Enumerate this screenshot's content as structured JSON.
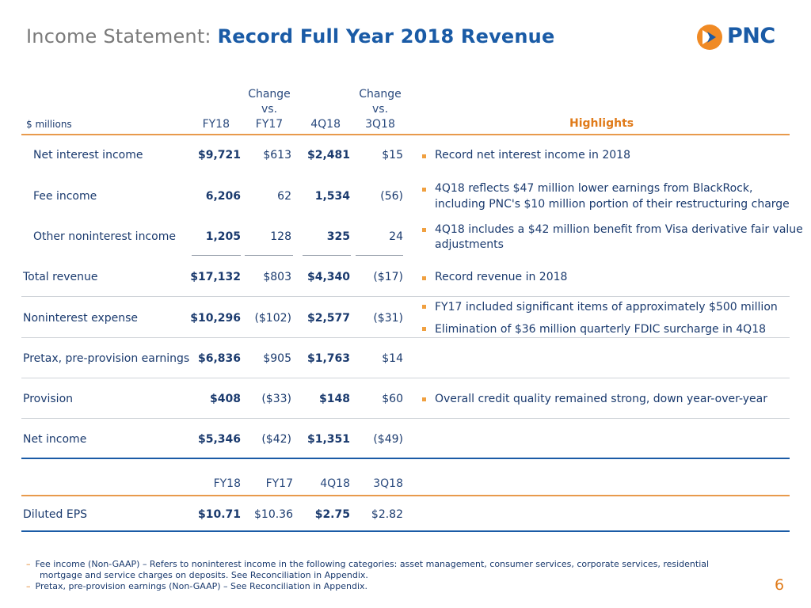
{
  "title": {
    "lead": "Income Statement:",
    "bold": "Record Full Year 2018 Revenue"
  },
  "logo": {
    "text": "PNC"
  },
  "header": {
    "units": "$ millions",
    "col_fy18": "FY18",
    "col_change_fy17": [
      "Change",
      "vs.",
      "FY17"
    ],
    "col_4q18": "4Q18",
    "col_change_3q18": [
      "Change",
      "vs.",
      "3Q18"
    ],
    "highlights": "Highlights"
  },
  "rows": [
    {
      "label": "Net interest income",
      "fy18": "$9,721",
      "chg_fy17": "$613",
      "q4": "$2,481",
      "chg_3q": "$15"
    },
    {
      "label": "Fee income",
      "fy18": "6,206",
      "chg_fy17": "62",
      "q4": "1,534",
      "chg_3q": "(56)"
    },
    {
      "label": "Other noninterest income",
      "fy18": "1,205",
      "chg_fy17": "128",
      "q4": "325",
      "chg_3q": "24"
    },
    {
      "label": "Total revenue",
      "fy18": "$17,132",
      "chg_fy17": "$803",
      "q4": "$4,340",
      "chg_3q": "($17)"
    },
    {
      "label": "Noninterest expense",
      "fy18": "$10,296",
      "chg_fy17": "($102)",
      "q4": "$2,577",
      "chg_3q": "($31)"
    },
    {
      "label": "Pretax, pre-provision earnings",
      "fy18": "$6,836",
      "chg_fy17": "$905",
      "q4": "$1,763",
      "chg_3q": "$14"
    },
    {
      "label": "Provision",
      "fy18": "$408",
      "chg_fy17": "($33)",
      "q4": "$148",
      "chg_3q": "$60"
    },
    {
      "label": "Net income",
      "fy18": "$5,346",
      "chg_fy17": "($42)",
      "q4": "$1,351",
      "chg_3q": "($49)"
    }
  ],
  "highlights": [
    "Record net interest income in 2018",
    "4Q18 reflects $47 million lower earnings from BlackRock,",
    "including PNC's $10 million portion of their restructuring charge",
    "4Q18 includes a $42 million benefit from Visa derivative fair value",
    "adjustments",
    "Record revenue in 2018",
    "FY17 included significant items of approximately $500 million",
    "Elimination of $36 million quarterly FDIC surcharge in 4Q18",
    "Overall credit quality remained strong, down year-over-year"
  ],
  "eps": {
    "headers": [
      "FY18",
      "FY17",
      "4Q18",
      "3Q18"
    ],
    "label": "Diluted EPS",
    "values": [
      "$10.71",
      "$10.36",
      "$2.75",
      "$2.82"
    ]
  },
  "footnotes": [
    "Fee income (Non-GAAP) – Refers to noninterest income in the following categories: asset management, consumer services, corporate services, residential",
    "mortgage and service charges on deposits. See Reconciliation in Appendix.",
    "Pretax, pre-provision earnings (Non-GAAP) – See Reconciliation in Appendix."
  ],
  "page_number": "6",
  "colors": {
    "brand_blue": "#1a5ba6",
    "brand_orange": "#e07b1a",
    "text": "#1a3a6e"
  }
}
